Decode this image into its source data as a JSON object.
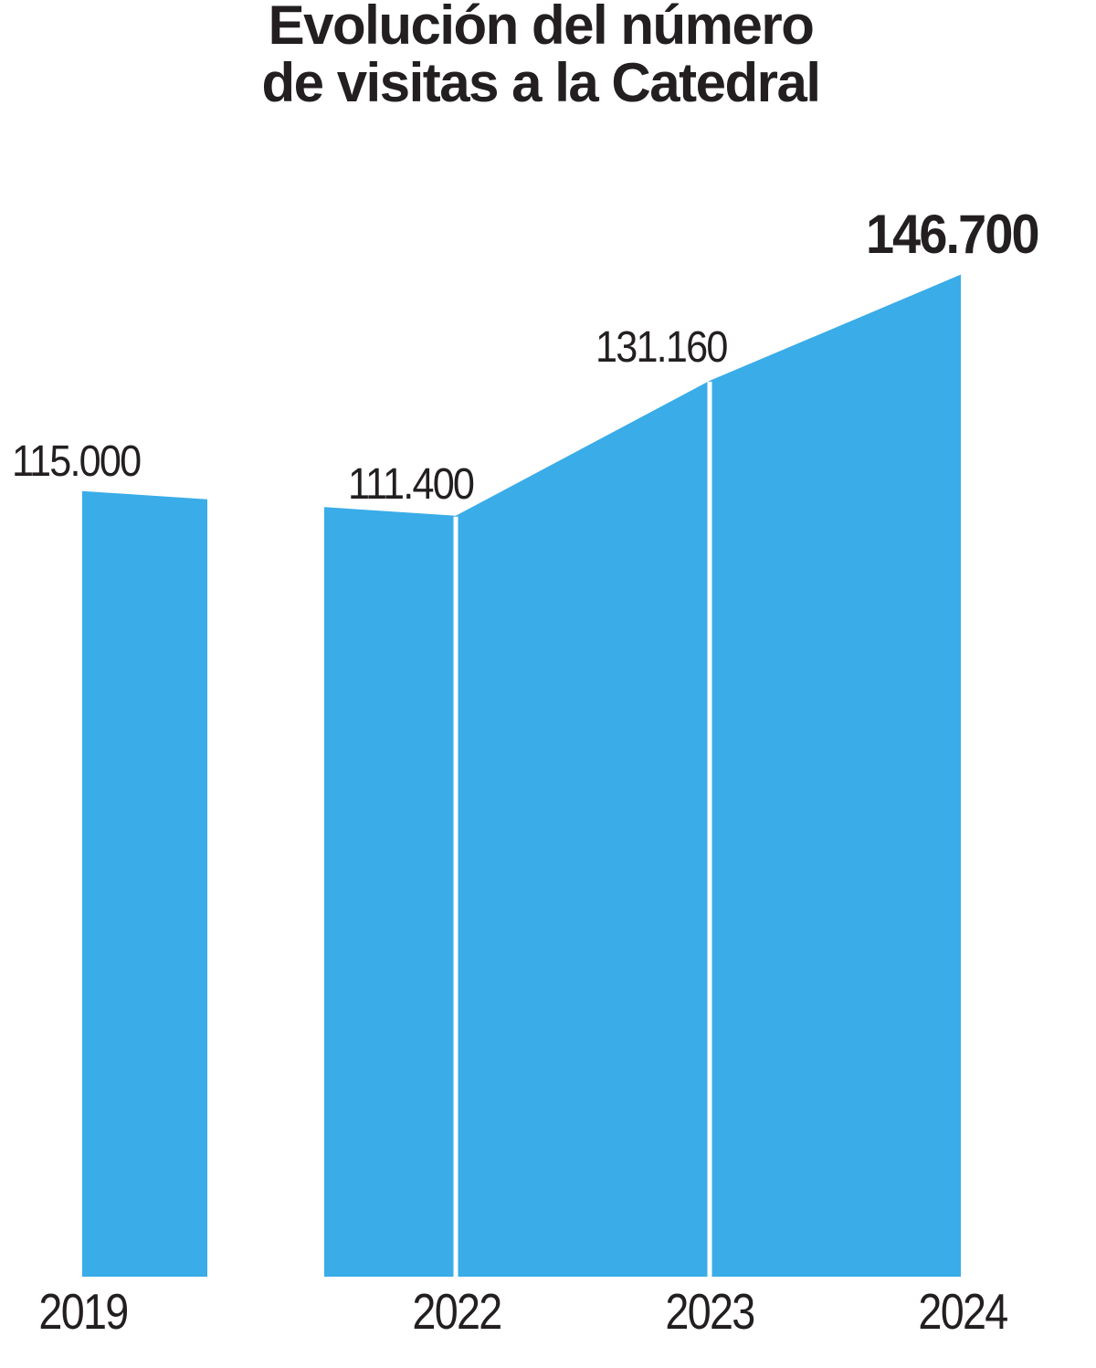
{
  "title": {
    "line1": "Evolución del número",
    "line2": "de visitas a la Catedral"
  },
  "chart_data": {
    "type": "area",
    "title": "Evolución del número de visitas a la Catedral",
    "categories": [
      "2019",
      "2022",
      "2023",
      "2024"
    ],
    "values": [
      115000,
      111400,
      131160,
      146700
    ],
    "value_labels": [
      "115.000",
      "111.400",
      "131.160",
      "146.700"
    ],
    "ylim": [
      0,
      155000
    ],
    "layout": {
      "grid": false,
      "legend": false,
      "axis_break_between": [
        "2019",
        "2022"
      ],
      "value_label_positions": "above points",
      "emphasized_label": "146.700"
    },
    "colors": {
      "area": "#3AACE8",
      "divider": "#FFFFFF",
      "text": "#231F20"
    }
  }
}
